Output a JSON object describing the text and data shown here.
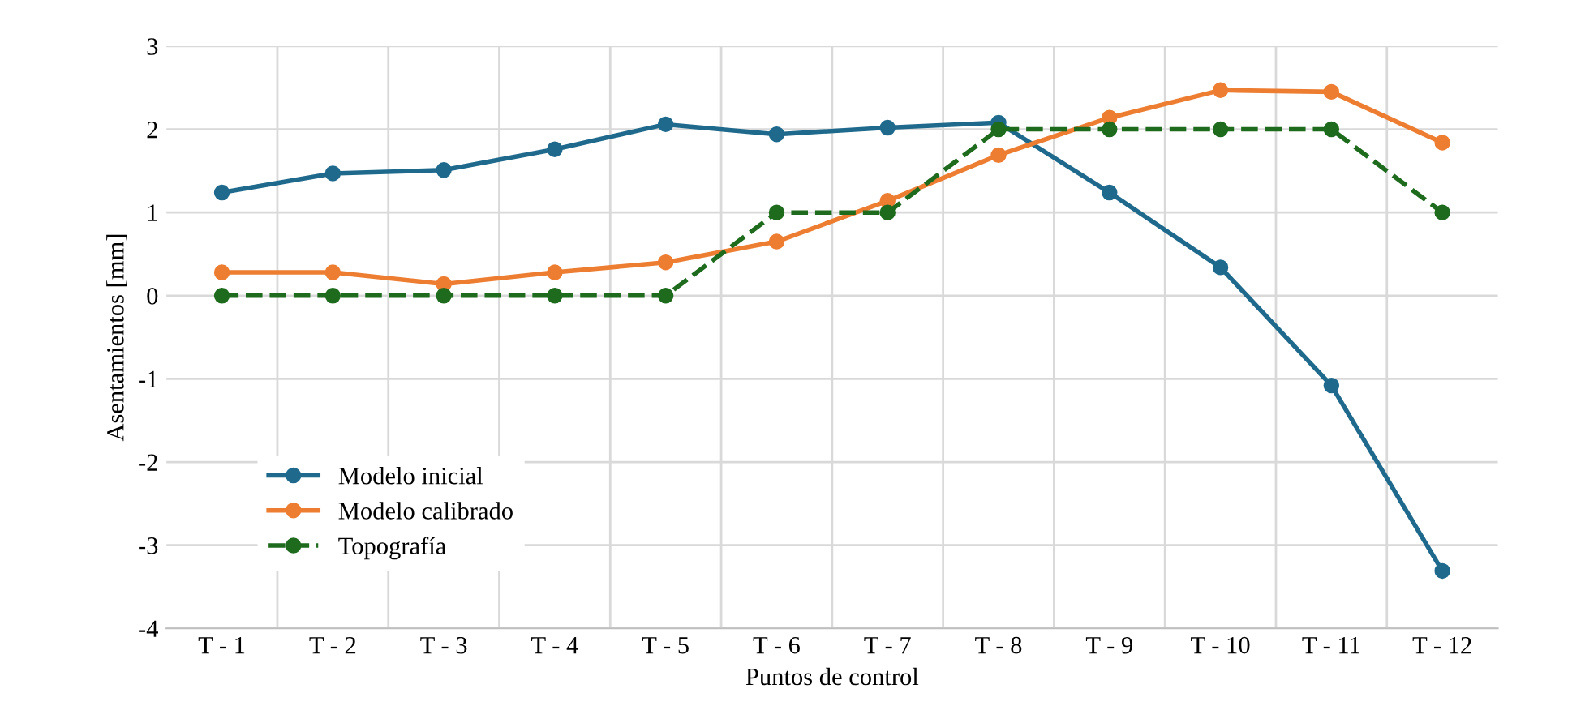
{
  "chart_data": {
    "type": "line",
    "xlabel": "Puntos de control",
    "ylabel": "Asentamientos [mm]",
    "categories": [
      "T - 1",
      "T - 2",
      "T - 3",
      "T - 4",
      "T - 5",
      "T - 6",
      "T - 7",
      "T - 8",
      "T - 9",
      "T - 10",
      "T - 11",
      "T - 12"
    ],
    "series": [
      {
        "name": "Modelo inicial",
        "color": "#1f6a8c",
        "line_style": "solid",
        "values": [
          1.24,
          1.47,
          1.51,
          1.76,
          2.06,
          1.94,
          2.02,
          2.08,
          1.24,
          0.34,
          -1.08,
          -3.31
        ]
      },
      {
        "name": "Modelo calibrado",
        "color": "#ed7d31",
        "line_style": "solid",
        "values": [
          0.28,
          0.28,
          0.14,
          0.28,
          0.4,
          0.65,
          1.14,
          1.69,
          2.14,
          2.47,
          2.45,
          1.84
        ]
      },
      {
        "name": "Topografía",
        "color": "#1e6b1e",
        "line_style": "dashed",
        "values": [
          0,
          0,
          0,
          0,
          0,
          1,
          1,
          2,
          2,
          2,
          2,
          1
        ]
      }
    ],
    "ylim": [
      -4,
      3
    ],
    "yticks": [
      -4,
      -3,
      -2,
      -1,
      0,
      1,
      2,
      3
    ],
    "grid": true,
    "legend": "bottom left",
    "marker": "circle"
  }
}
